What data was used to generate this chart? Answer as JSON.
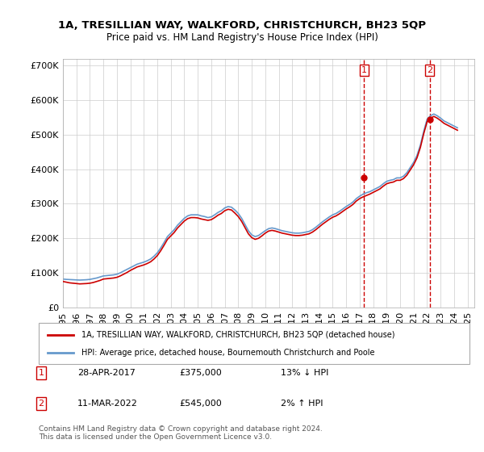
{
  "title": "1A, TRESILLIAN WAY, WALKFORD, CHRISTCHURCH, BH23 5QP",
  "subtitle": "Price paid vs. HM Land Registry's House Price Index (HPI)",
  "ylabel_ticks": [
    "£0",
    "£100K",
    "£200K",
    "£300K",
    "£400K",
    "£500K",
    "£600K",
    "£700K"
  ],
  "ytick_values": [
    0,
    100000,
    200000,
    300000,
    400000,
    500000,
    600000,
    700000
  ],
  "ylim": [
    0,
    720000
  ],
  "xlim_start": 1995.0,
  "xlim_end": 2025.5,
  "hpi_color": "#6699cc",
  "price_color": "#cc0000",
  "marker1_x": 2017.33,
  "marker1_y": 375000,
  "marker2_x": 2022.19,
  "marker2_y": 545000,
  "legend_label1": "1A, TRESILLIAN WAY, WALKFORD, CHRISTCHURCH, BH23 5QP (detached house)",
  "legend_label2": "HPI: Average price, detached house, Bournemouth Christchurch and Poole",
  "table_rows": [
    {
      "num": "1",
      "date": "28-APR-2017",
      "price": "£375,000",
      "hpi": "13% ↓ HPI"
    },
    {
      "num": "2",
      "date": "11-MAR-2022",
      "price": "£545,000",
      "hpi": "2% ↑ HPI"
    }
  ],
  "footer": "Contains HM Land Registry data © Crown copyright and database right 2024.\nThis data is licensed under the Open Government Licence v3.0.",
  "background_color": "#ffffff",
  "grid_color": "#cccccc",
  "hpi_data_x": [
    1995,
    1995.25,
    1995.5,
    1995.75,
    1996,
    1996.25,
    1996.5,
    1996.75,
    1997,
    1997.25,
    1997.5,
    1997.75,
    1998,
    1998.25,
    1998.5,
    1998.75,
    1999,
    1999.25,
    1999.5,
    1999.75,
    2000,
    2000.25,
    2000.5,
    2000.75,
    2001,
    2001.25,
    2001.5,
    2001.75,
    2002,
    2002.25,
    2002.5,
    2002.75,
    2003,
    2003.25,
    2003.5,
    2003.75,
    2004,
    2004.25,
    2004.5,
    2004.75,
    2005,
    2005.25,
    2005.5,
    2005.75,
    2006,
    2006.25,
    2006.5,
    2006.75,
    2007,
    2007.25,
    2007.5,
    2007.75,
    2008,
    2008.25,
    2008.5,
    2008.75,
    2009,
    2009.25,
    2009.5,
    2009.75,
    2010,
    2010.25,
    2010.5,
    2010.75,
    2011,
    2011.25,
    2011.5,
    2011.75,
    2012,
    2012.25,
    2012.5,
    2012.75,
    2013,
    2013.25,
    2013.5,
    2013.75,
    2014,
    2014.25,
    2014.5,
    2014.75,
    2015,
    2015.25,
    2015.5,
    2015.75,
    2016,
    2016.25,
    2016.5,
    2016.75,
    2017,
    2017.25,
    2017.5,
    2017.75,
    2018,
    2018.25,
    2018.5,
    2018.75,
    2019,
    2019.25,
    2019.5,
    2019.75,
    2020,
    2020.25,
    2020.5,
    2020.75,
    2021,
    2021.25,
    2021.5,
    2021.75,
    2022,
    2022.25,
    2022.5,
    2022.75,
    2023,
    2023.25,
    2023.5,
    2023.75,
    2024,
    2024.25
  ],
  "hpi_data_y": [
    82000,
    81000,
    80500,
    80000,
    79500,
    79000,
    79500,
    80000,
    81000,
    83000,
    85000,
    88000,
    91000,
    92000,
    93000,
    94000,
    96000,
    100000,
    105000,
    110000,
    115000,
    120000,
    125000,
    128000,
    131000,
    135000,
    140000,
    148000,
    158000,
    172000,
    188000,
    205000,
    215000,
    225000,
    238000,
    248000,
    258000,
    265000,
    268000,
    268000,
    268000,
    265000,
    263000,
    260000,
    262000,
    268000,
    275000,
    280000,
    288000,
    292000,
    290000,
    282000,
    272000,
    258000,
    240000,
    222000,
    210000,
    205000,
    208000,
    215000,
    222000,
    228000,
    230000,
    228000,
    225000,
    222000,
    220000,
    218000,
    216000,
    215000,
    215000,
    216000,
    218000,
    220000,
    225000,
    232000,
    240000,
    248000,
    255000,
    262000,
    268000,
    272000,
    278000,
    285000,
    292000,
    298000,
    305000,
    315000,
    322000,
    328000,
    332000,
    335000,
    340000,
    345000,
    350000,
    358000,
    365000,
    368000,
    370000,
    375000,
    375000,
    380000,
    390000,
    405000,
    420000,
    440000,
    470000,
    510000,
    545000,
    555000,
    560000,
    555000,
    548000,
    540000,
    535000,
    530000,
    525000,
    520000
  ],
  "price_data_x": [
    1995,
    1995.25,
    1995.5,
    1995.75,
    1996,
    1996.25,
    1996.5,
    1996.75,
    1997,
    1997.25,
    1997.5,
    1997.75,
    1998,
    1998.25,
    1998.5,
    1998.75,
    1999,
    1999.25,
    1999.5,
    1999.75,
    2000,
    2000.25,
    2000.5,
    2000.75,
    2001,
    2001.25,
    2001.5,
    2001.75,
    2002,
    2002.25,
    2002.5,
    2002.75,
    2003,
    2003.25,
    2003.5,
    2003.75,
    2004,
    2004.25,
    2004.5,
    2004.75,
    2005,
    2005.25,
    2005.5,
    2005.75,
    2006,
    2006.25,
    2006.5,
    2006.75,
    2007,
    2007.25,
    2007.5,
    2007.75,
    2008,
    2008.25,
    2008.5,
    2008.75,
    2009,
    2009.25,
    2009.5,
    2009.75,
    2010,
    2010.25,
    2010.5,
    2010.75,
    2011,
    2011.25,
    2011.5,
    2011.75,
    2012,
    2012.25,
    2012.5,
    2012.75,
    2013,
    2013.25,
    2013.5,
    2013.75,
    2014,
    2014.25,
    2014.5,
    2014.75,
    2015,
    2015.25,
    2015.5,
    2015.75,
    2016,
    2016.25,
    2016.5,
    2016.75,
    2017,
    2017.25,
    2017.5,
    2017.75,
    2018,
    2018.25,
    2018.5,
    2018.75,
    2019,
    2019.25,
    2019.5,
    2019.75,
    2020,
    2020.25,
    2020.5,
    2020.75,
    2021,
    2021.25,
    2021.5,
    2021.75,
    2022,
    2022.25,
    2022.5,
    2022.75,
    2023,
    2023.25,
    2023.5,
    2023.75,
    2024,
    2024.25
  ],
  "price_data_y": [
    75000,
    73000,
    71000,
    70000,
    69000,
    68000,
    68500,
    69000,
    70000,
    72000,
    75000,
    78000,
    82000,
    83000,
    84000,
    85000,
    87000,
    91000,
    96000,
    101000,
    107000,
    112000,
    117000,
    120000,
    123000,
    127000,
    132000,
    140000,
    150000,
    164000,
    180000,
    197000,
    207000,
    217000,
    230000,
    240000,
    250000,
    257000,
    260000,
    260000,
    259000,
    256000,
    254000,
    252000,
    254000,
    260000,
    267000,
    272000,
    280000,
    284000,
    282000,
    273000,
    263000,
    249000,
    231000,
    213000,
    202000,
    197000,
    200000,
    207000,
    215000,
    221000,
    223000,
    221000,
    218000,
    215000,
    213000,
    211000,
    209000,
    208000,
    208000,
    209000,
    211000,
    213000,
    218000,
    225000,
    233000,
    241000,
    248000,
    255000,
    261000,
    265000,
    271000,
    278000,
    285000,
    291000,
    298000,
    308000,
    315000,
    320000,
    324000,
    328000,
    333000,
    338000,
    343000,
    351000,
    358000,
    361000,
    363000,
    368000,
    368000,
    373000,
    383000,
    398000,
    413000,
    433000,
    463000,
    503000,
    538000,
    548000,
    553000,
    548000,
    541000,
    533000,
    528000,
    523000,
    518000,
    513000
  ]
}
